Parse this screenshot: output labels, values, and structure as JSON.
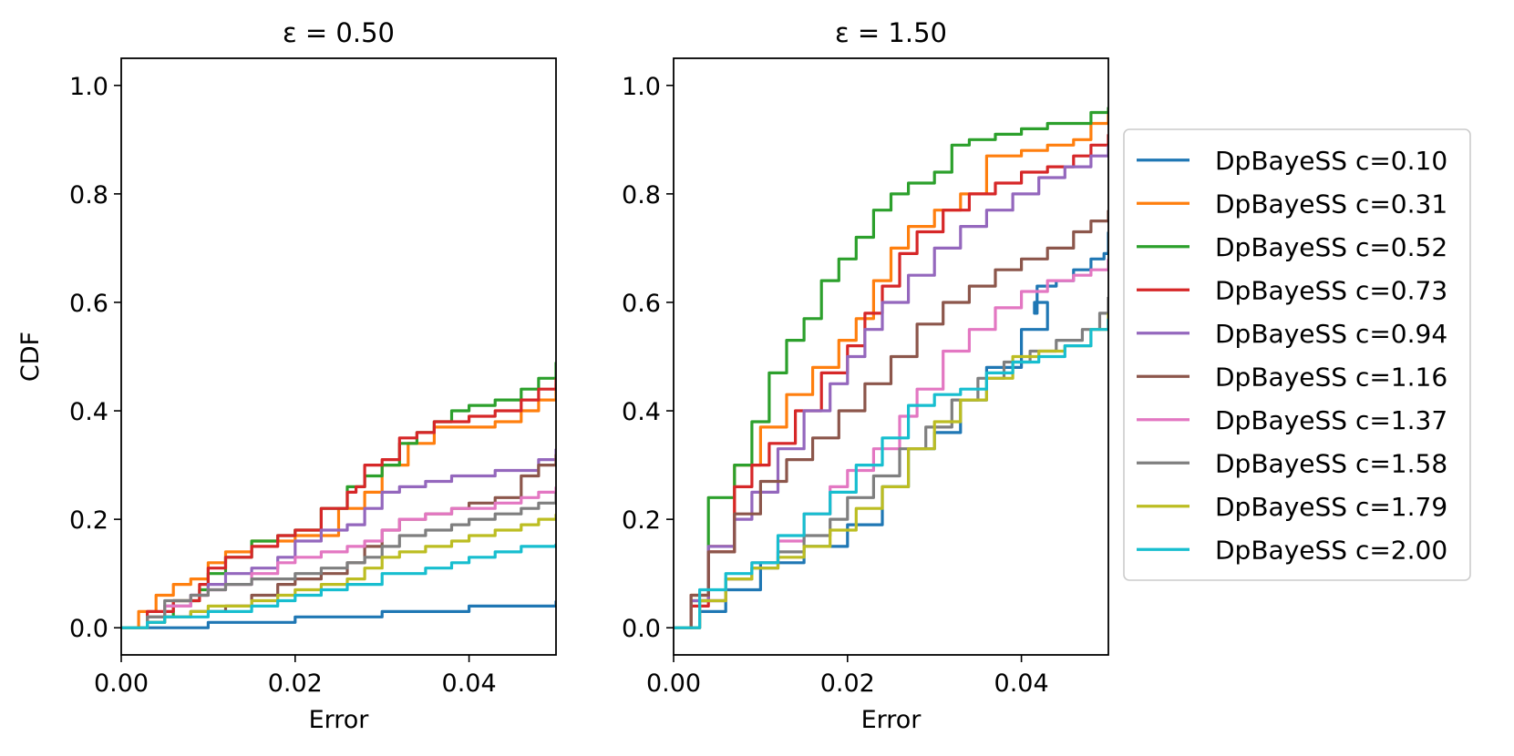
{
  "chart_data": [
    {
      "type": "line",
      "title": "ε = 0.50",
      "xlabel": "Error",
      "ylabel": "CDF",
      "xlim": [
        0,
        0.05
      ],
      "ylim": [
        -0.05,
        1.05
      ],
      "xticks": [
        {
          "value": 0.0,
          "label": "0.00"
        },
        {
          "value": 0.02,
          "label": "0.02"
        },
        {
          "value": 0.04,
          "label": "0.04"
        }
      ],
      "yticks": [
        {
          "value": 0.0,
          "label": "0.0"
        },
        {
          "value": 0.2,
          "label": "0.2"
        },
        {
          "value": 0.4,
          "label": "0.4"
        },
        {
          "value": 0.6,
          "label": "0.6"
        },
        {
          "value": 0.8,
          "label": "0.8"
        },
        {
          "value": 1.0,
          "label": "1.0"
        }
      ],
      "series": [
        {
          "name": "DpBayeSS c=0.10",
          "color": "#1f77b4",
          "x": [
            0,
            0.01,
            0.02,
            0.03,
            0.04,
            0.05
          ],
          "y": [
            0,
            0.01,
            0.02,
            0.03,
            0.04,
            0.05
          ]
        },
        {
          "name": "DpBayeSS c=0.31",
          "color": "#ff7f0e",
          "x": [
            0,
            0.002,
            0.004,
            0.006,
            0.008,
            0.01,
            0.012,
            0.015,
            0.02,
            0.025,
            0.028,
            0.03,
            0.033,
            0.036,
            0.04,
            0.043,
            0.046,
            0.048,
            0.05
          ],
          "y": [
            0,
            0.03,
            0.06,
            0.08,
            0.09,
            0.12,
            0.14,
            0.16,
            0.17,
            0.22,
            0.25,
            0.3,
            0.34,
            0.37,
            0.37,
            0.38,
            0.4,
            0.42,
            0.45
          ]
        },
        {
          "name": "DpBayeSS c=0.52",
          "color": "#2ca02c",
          "x": [
            0,
            0.003,
            0.006,
            0.009,
            0.01,
            0.012,
            0.015,
            0.018,
            0.02,
            0.023,
            0.026,
            0.028,
            0.03,
            0.032,
            0.034,
            0.036,
            0.038,
            0.04,
            0.043,
            0.046,
            0.048,
            0.05
          ],
          "y": [
            0,
            0.02,
            0.05,
            0.07,
            0.1,
            0.13,
            0.16,
            0.17,
            0.18,
            0.22,
            0.26,
            0.28,
            0.3,
            0.34,
            0.36,
            0.38,
            0.4,
            0.41,
            0.42,
            0.44,
            0.46,
            0.49
          ]
        },
        {
          "name": "DpBayeSS c=0.73",
          "color": "#d62728",
          "x": [
            0,
            0.003,
            0.006,
            0.009,
            0.01,
            0.012,
            0.015,
            0.018,
            0.02,
            0.023,
            0.026,
            0.027,
            0.028,
            0.03,
            0.032,
            0.034,
            0.036,
            0.038,
            0.04,
            0.043,
            0.046,
            0.048,
            0.05
          ],
          "y": [
            0,
            0.03,
            0.05,
            0.08,
            0.11,
            0.13,
            0.15,
            0.17,
            0.18,
            0.22,
            0.25,
            0.26,
            0.3,
            0.31,
            0.35,
            0.36,
            0.38,
            0.38,
            0.39,
            0.4,
            0.42,
            0.44,
            0.46
          ]
        },
        {
          "name": "DpBayeSS c=0.94",
          "color": "#9467bd",
          "x": [
            0,
            0.003,
            0.005,
            0.008,
            0.01,
            0.012,
            0.015,
            0.018,
            0.02,
            0.023,
            0.026,
            0.028,
            0.03,
            0.032,
            0.035,
            0.038,
            0.04,
            0.043,
            0.046,
            0.048,
            0.05
          ],
          "y": [
            0,
            0.01,
            0.04,
            0.06,
            0.08,
            0.1,
            0.11,
            0.13,
            0.16,
            0.18,
            0.19,
            0.22,
            0.25,
            0.26,
            0.27,
            0.28,
            0.28,
            0.29,
            0.29,
            0.31,
            0.33
          ]
        },
        {
          "name": "DpBayeSS c=1.16",
          "color": "#8c564b",
          "x": [
            0,
            0.003,
            0.005,
            0.008,
            0.01,
            0.012,
            0.015,
            0.018,
            0.02,
            0.023,
            0.026,
            0.028,
            0.03,
            0.032,
            0.035,
            0.038,
            0.04,
            0.043,
            0.046,
            0.048,
            0.05
          ],
          "y": [
            0,
            0.01,
            0.02,
            0.03,
            0.03,
            0.04,
            0.06,
            0.08,
            0.09,
            0.1,
            0.12,
            0.15,
            0.18,
            0.2,
            0.21,
            0.22,
            0.23,
            0.24,
            0.28,
            0.3,
            0.32
          ]
        },
        {
          "name": "DpBayeSS c=1.37",
          "color": "#e377c2",
          "x": [
            0,
            0.003,
            0.005,
            0.008,
            0.01,
            0.012,
            0.015,
            0.018,
            0.02,
            0.023,
            0.026,
            0.028,
            0.03,
            0.032,
            0.035,
            0.038,
            0.04,
            0.043,
            0.046,
            0.048,
            0.05
          ],
          "y": [
            0,
            0.02,
            0.04,
            0.06,
            0.07,
            0.08,
            0.1,
            0.12,
            0.13,
            0.14,
            0.15,
            0.16,
            0.18,
            0.2,
            0.21,
            0.22,
            0.22,
            0.23,
            0.24,
            0.25,
            0.26
          ]
        },
        {
          "name": "DpBayeSS c=1.58",
          "color": "#7f7f7f",
          "x": [
            0,
            0.003,
            0.005,
            0.008,
            0.01,
            0.012,
            0.015,
            0.018,
            0.02,
            0.023,
            0.026,
            0.028,
            0.03,
            0.032,
            0.035,
            0.038,
            0.04,
            0.043,
            0.046,
            0.048,
            0.05
          ],
          "y": [
            0,
            0.02,
            0.05,
            0.06,
            0.07,
            0.08,
            0.09,
            0.09,
            0.1,
            0.11,
            0.12,
            0.13,
            0.15,
            0.17,
            0.18,
            0.19,
            0.2,
            0.21,
            0.22,
            0.23,
            0.25
          ]
        },
        {
          "name": "DpBayeSS c=1.79",
          "color": "#bcbd22",
          "x": [
            0,
            0.003,
            0.005,
            0.008,
            0.01,
            0.012,
            0.015,
            0.018,
            0.02,
            0.023,
            0.026,
            0.028,
            0.03,
            0.032,
            0.035,
            0.038,
            0.04,
            0.043,
            0.046,
            0.048,
            0.05
          ],
          "y": [
            0,
            0.01,
            0.02,
            0.03,
            0.04,
            0.04,
            0.05,
            0.06,
            0.07,
            0.08,
            0.09,
            0.11,
            0.13,
            0.14,
            0.15,
            0.16,
            0.17,
            0.18,
            0.19,
            0.2,
            0.21
          ]
        },
        {
          "name": "DpBayeSS c=2.00",
          "color": "#17becf",
          "x": [
            0,
            0.003,
            0.005,
            0.008,
            0.01,
            0.012,
            0.015,
            0.018,
            0.02,
            0.023,
            0.026,
            0.028,
            0.03,
            0.032,
            0.035,
            0.038,
            0.04,
            0.043,
            0.046,
            0.048,
            0.05
          ],
          "y": [
            0,
            0.01,
            0.02,
            0.02,
            0.03,
            0.03,
            0.04,
            0.05,
            0.06,
            0.07,
            0.08,
            0.08,
            0.1,
            0.1,
            0.11,
            0.12,
            0.13,
            0.14,
            0.15,
            0.15,
            0.155
          ]
        }
      ]
    },
    {
      "type": "line",
      "title": "ε = 1.50",
      "xlabel": "Error",
      "ylabel": "",
      "xlim": [
        0,
        0.05
      ],
      "ylim": [
        -0.05,
        1.05
      ],
      "xticks": [
        {
          "value": 0.0,
          "label": "0.00"
        },
        {
          "value": 0.02,
          "label": "0.02"
        },
        {
          "value": 0.04,
          "label": "0.04"
        }
      ],
      "yticks": [
        {
          "value": 0.0,
          "label": "0.0"
        },
        {
          "value": 0.2,
          "label": "0.2"
        },
        {
          "value": 0.4,
          "label": "0.4"
        },
        {
          "value": 0.6,
          "label": "0.6"
        },
        {
          "value": 0.8,
          "label": "0.8"
        },
        {
          "value": 1.0,
          "label": "1.0"
        }
      ],
      "series": [
        {
          "name": "DpBayeSS c=0.10",
          "color": "#1f77b4",
          "x": [
            0,
            0.003,
            0.006,
            0.01,
            0.015,
            0.02,
            0.024,
            0.027,
            0.03,
            0.033,
            0.036,
            0.04,
            0.043,
            0.0415,
            0.0418,
            0.044,
            0.046,
            0.048,
            0.0495,
            0.05
          ],
          "y": [
            0,
            0.03,
            0.07,
            0.12,
            0.15,
            0.19,
            0.26,
            0.33,
            0.36,
            0.42,
            0.48,
            0.55,
            0.6,
            0.58,
            0.63,
            0.64,
            0.66,
            0.68,
            0.69,
            0.73
          ]
        },
        {
          "name": "DpBayeSS c=0.31",
          "color": "#ff7f0e",
          "x": [
            0,
            0.002,
            0.004,
            0.007,
            0.01,
            0.013,
            0.016,
            0.019,
            0.021,
            0.023,
            0.025,
            0.027,
            0.03,
            0.033,
            0.036,
            0.04,
            0.043,
            0.046,
            0.048,
            0.05
          ],
          "y": [
            0,
            0.06,
            0.15,
            0.3,
            0.37,
            0.43,
            0.48,
            0.53,
            0.57,
            0.64,
            0.7,
            0.74,
            0.77,
            0.8,
            0.87,
            0.88,
            0.89,
            0.9,
            0.93,
            0.95
          ]
        },
        {
          "name": "DpBayeSS c=0.52",
          "color": "#2ca02c",
          "x": [
            0,
            0.002,
            0.004,
            0.007,
            0.009,
            0.011,
            0.013,
            0.015,
            0.017,
            0.019,
            0.021,
            0.023,
            0.025,
            0.027,
            0.03,
            0.032,
            0.034,
            0.037,
            0.04,
            0.043,
            0.046,
            0.048,
            0.05
          ],
          "y": [
            0,
            0.05,
            0.24,
            0.3,
            0.38,
            0.47,
            0.53,
            0.57,
            0.64,
            0.68,
            0.72,
            0.77,
            0.8,
            0.82,
            0.84,
            0.89,
            0.9,
            0.91,
            0.92,
            0.93,
            0.93,
            0.95,
            0.96
          ]
        },
        {
          "name": "DpBayeSS c=0.73",
          "color": "#d62728",
          "x": [
            0,
            0.002,
            0.004,
            0.007,
            0.009,
            0.011,
            0.014,
            0.017,
            0.02,
            0.022,
            0.024,
            0.026,
            0.028,
            0.031,
            0.034,
            0.037,
            0.04,
            0.043,
            0.046,
            0.048,
            0.05
          ],
          "y": [
            0,
            0.04,
            0.14,
            0.26,
            0.3,
            0.34,
            0.4,
            0.47,
            0.52,
            0.58,
            0.63,
            0.69,
            0.73,
            0.77,
            0.8,
            0.82,
            0.84,
            0.85,
            0.87,
            0.89,
            0.91
          ]
        },
        {
          "name": "DpBayeSS c=0.94",
          "color": "#9467bd",
          "x": [
            0,
            0.002,
            0.004,
            0.007,
            0.009,
            0.012,
            0.015,
            0.018,
            0.02,
            0.022,
            0.024,
            0.027,
            0.03,
            0.033,
            0.036,
            0.039,
            0.042,
            0.045,
            0.048,
            0.05
          ],
          "y": [
            0,
            0.05,
            0.15,
            0.2,
            0.25,
            0.33,
            0.4,
            0.45,
            0.5,
            0.55,
            0.6,
            0.65,
            0.7,
            0.74,
            0.77,
            0.8,
            0.83,
            0.85,
            0.87,
            0.89
          ]
        },
        {
          "name": "DpBayeSS c=1.16",
          "color": "#8c564b",
          "x": [
            0,
            0.002,
            0.004,
            0.007,
            0.01,
            0.013,
            0.016,
            0.019,
            0.022,
            0.025,
            0.028,
            0.031,
            0.034,
            0.037,
            0.04,
            0.043,
            0.046,
            0.048,
            0.05
          ],
          "y": [
            0,
            0.06,
            0.14,
            0.21,
            0.27,
            0.31,
            0.35,
            0.4,
            0.45,
            0.5,
            0.56,
            0.6,
            0.63,
            0.66,
            0.68,
            0.7,
            0.73,
            0.75,
            0.77
          ]
        },
        {
          "name": "DpBayeSS c=1.37",
          "color": "#e377c2",
          "x": [
            0,
            0.003,
            0.006,
            0.009,
            0.012,
            0.015,
            0.018,
            0.02,
            0.023,
            0.026,
            0.028,
            0.031,
            0.034,
            0.037,
            0.04,
            0.043,
            0.046,
            0.048,
            0.05
          ],
          "y": [
            0,
            0.05,
            0.09,
            0.12,
            0.16,
            0.21,
            0.26,
            0.29,
            0.33,
            0.39,
            0.44,
            0.51,
            0.55,
            0.59,
            0.62,
            0.64,
            0.65,
            0.66,
            0.68
          ]
        },
        {
          "name": "DpBayeSS c=1.58",
          "color": "#7f7f7f",
          "x": [
            0,
            0.003,
            0.006,
            0.009,
            0.012,
            0.015,
            0.018,
            0.02,
            0.023,
            0.026,
            0.029,
            0.032,
            0.035,
            0.038,
            0.041,
            0.044,
            0.047,
            0.049,
            0.05
          ],
          "y": [
            0,
            0.05,
            0.09,
            0.11,
            0.14,
            0.17,
            0.2,
            0.24,
            0.28,
            0.33,
            0.37,
            0.42,
            0.46,
            0.49,
            0.51,
            0.53,
            0.55,
            0.58,
            0.61
          ]
        },
        {
          "name": "DpBayeSS c=1.79",
          "color": "#bcbd22",
          "x": [
            0,
            0.003,
            0.006,
            0.009,
            0.012,
            0.015,
            0.018,
            0.021,
            0.024,
            0.027,
            0.03,
            0.033,
            0.036,
            0.039,
            0.042,
            0.045,
            0.048,
            0.05
          ],
          "y": [
            0,
            0.05,
            0.09,
            0.11,
            0.13,
            0.15,
            0.18,
            0.22,
            0.26,
            0.33,
            0.38,
            0.42,
            0.46,
            0.5,
            0.51,
            0.52,
            0.55,
            0.58
          ]
        },
        {
          "name": "DpBayeSS c=2.00",
          "color": "#17becf",
          "x": [
            0,
            0.003,
            0.006,
            0.009,
            0.012,
            0.015,
            0.018,
            0.021,
            0.024,
            0.027,
            0.03,
            0.033,
            0.036,
            0.039,
            0.042,
            0.045,
            0.048,
            0.05
          ],
          "y": [
            0,
            0.07,
            0.1,
            0.12,
            0.17,
            0.21,
            0.25,
            0.3,
            0.35,
            0.41,
            0.43,
            0.44,
            0.47,
            0.49,
            0.5,
            0.52,
            0.55,
            0.57
          ]
        }
      ]
    }
  ]
}
